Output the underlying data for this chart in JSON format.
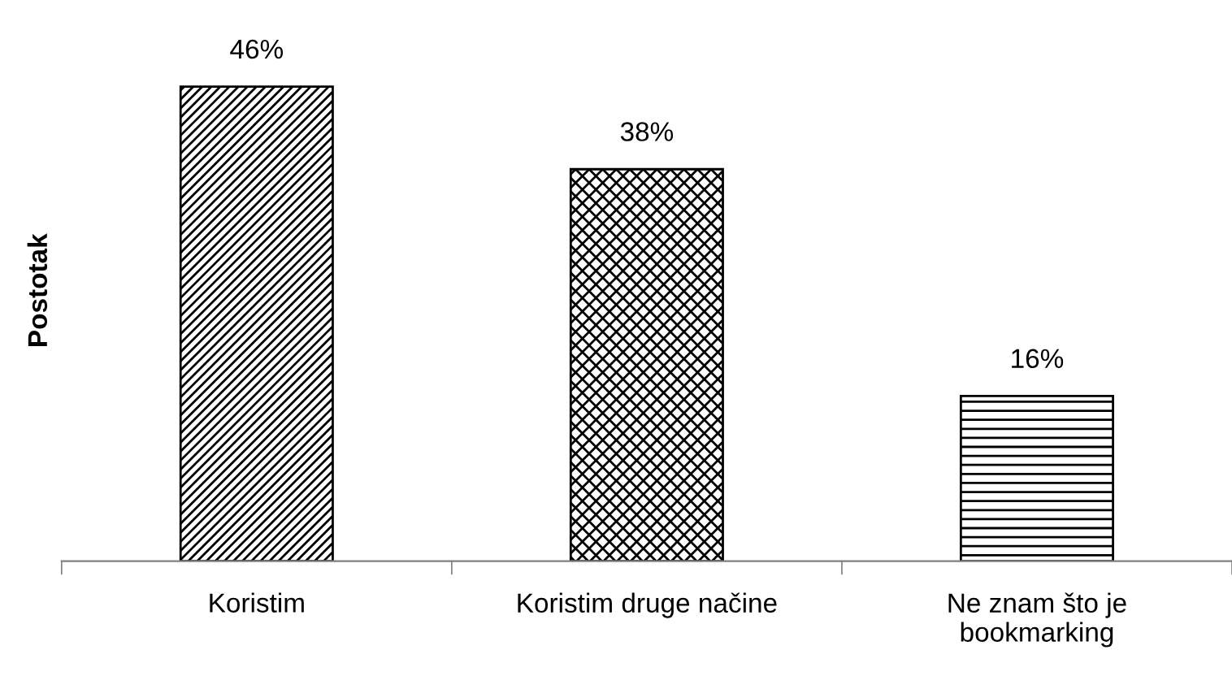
{
  "chart_data": {
    "type": "bar",
    "ylabel": "Postotak",
    "categories": [
      "Koristim",
      "Koristim druge načine",
      "Ne znam što je\nbookmarking"
    ],
    "values": [
      46,
      38,
      16
    ],
    "value_labels": [
      "46%",
      "38%",
      "16%"
    ],
    "colors": [
      "#000000",
      "#000000",
      "#000000"
    ]
  }
}
